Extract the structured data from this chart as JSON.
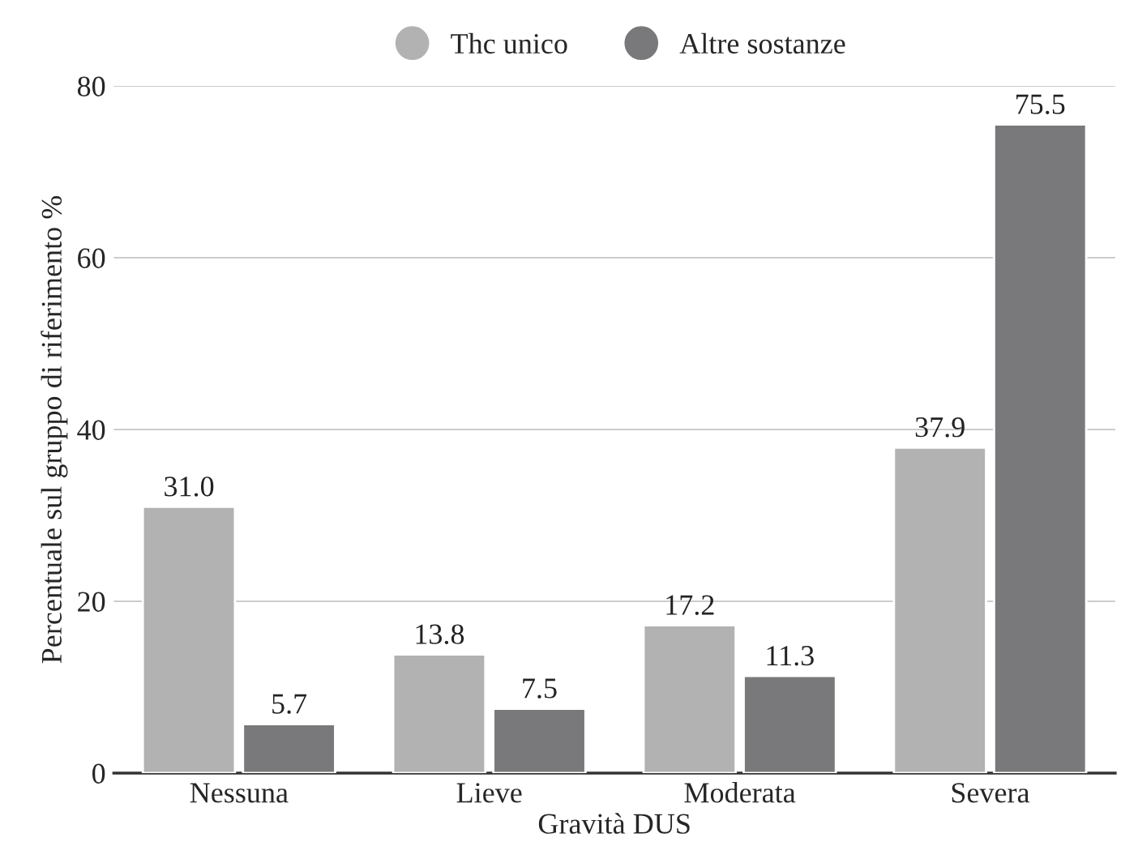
{
  "chart_data": {
    "type": "bar",
    "xlabel": "Gravità DUS",
    "ylabel": "Percentuale sul gruppo di riferimento %",
    "categories": [
      "Nessuna",
      "Lieve",
      "Moderata",
      "Severa"
    ],
    "series": [
      {
        "name": "Thc unico",
        "color": "#b2b2b3",
        "values": [
          31.0,
          13.8,
          17.2,
          37.9
        ],
        "value_labels": [
          "31.0",
          "13.8",
          "17.2",
          "37.9"
        ]
      },
      {
        "name": "Altre sostanze",
        "color": "#79797b",
        "values": [
          5.7,
          7.5,
          11.3,
          75.5
        ],
        "value_labels": [
          "5.7",
          "7.5",
          "11.3",
          "75.5"
        ]
      }
    ],
    "ylim": [
      0,
      80
    ],
    "yticks": [
      0,
      20,
      40,
      60,
      80
    ],
    "grid": "y",
    "legend": "top"
  }
}
